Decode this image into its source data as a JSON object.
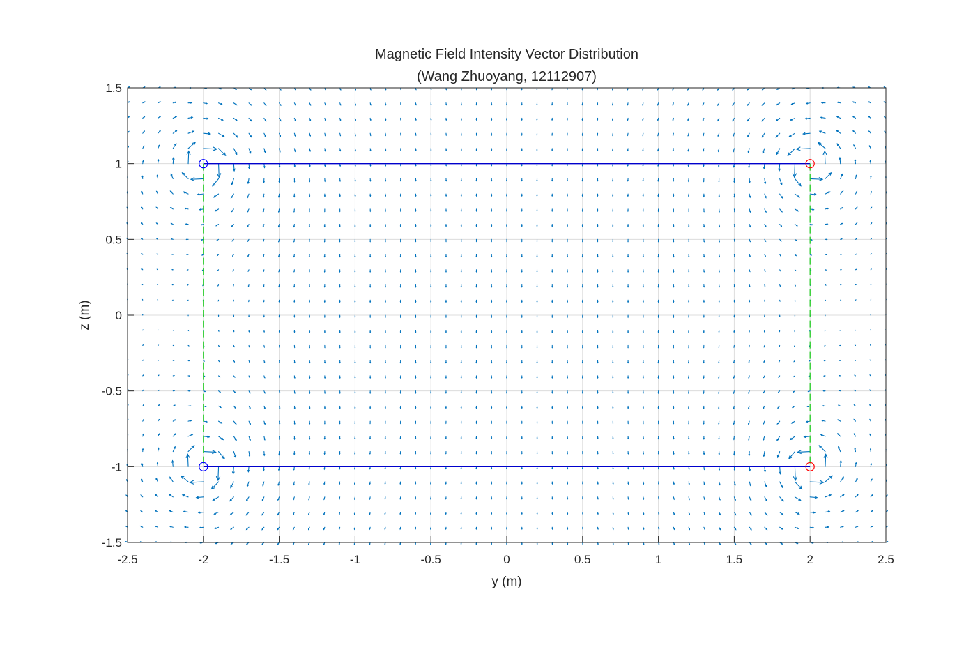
{
  "chart_data": {
    "type": "quiver",
    "title": "Magnetic Field Intensity Vector Distribution",
    "subtitle": "(Wang Zhuoyang, 12112907)",
    "xlabel": "y (m)",
    "ylabel": "z (m)",
    "xlim": [
      -2.5,
      2.5
    ],
    "ylim": [
      -1.5,
      1.5
    ],
    "xticks": [
      -2.5,
      -2,
      -1.5,
      -1,
      -0.5,
      0,
      0.5,
      1,
      1.5,
      2,
      2.5
    ],
    "yticks": [
      -1.5,
      -1,
      -0.5,
      0,
      0.5,
      1,
      1.5
    ],
    "xtick_labels": [
      "-2.5",
      "-2",
      "-1.5",
      "-1",
      "-0.5",
      "0",
      "0.5",
      "1",
      "1.5",
      "2",
      "2.5"
    ],
    "ytick_labels": [
      "-1.5",
      "-1",
      "-0.5",
      "0",
      "0.5",
      "1",
      "1.5"
    ],
    "grid": true,
    "quiver_grid": {
      "y_step": 0.1,
      "z_step": 0.1
    },
    "conductors": [
      {
        "y": -2,
        "z": 1,
        "color": "#0000ff"
      },
      {
        "y": 2,
        "z": 1,
        "color": "#ff0000"
      },
      {
        "y": -2,
        "z": -1,
        "color": "#0000ff"
      },
      {
        "y": 2,
        "z": -1,
        "color": "#ff0000"
      }
    ],
    "lines": [
      {
        "from": [
          -2,
          1
        ],
        "to": [
          2,
          1
        ],
        "style": "solid",
        "color": "#0000cc"
      },
      {
        "from": [
          -2,
          -1
        ],
        "to": [
          2,
          -1
        ],
        "style": "solid",
        "color": "#0000cc"
      },
      {
        "from": [
          -2,
          1
        ],
        "to": [
          -2,
          -1
        ],
        "style": "dashed",
        "color": "#22cc22"
      },
      {
        "from": [
          2,
          1
        ],
        "to": [
          2,
          -1
        ],
        "style": "dashed",
        "color": "#22cc22"
      }
    ],
    "colors": {
      "arrow": "#0072bd",
      "grid": "#dcdcdc",
      "axes": "#262626"
    }
  }
}
